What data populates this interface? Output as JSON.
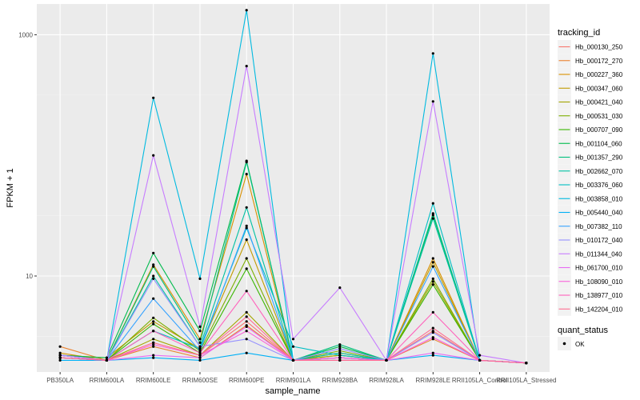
{
  "chart_data": {
    "type": "line",
    "title": "",
    "xlabel": "sample_name",
    "ylabel": "FPKM + 1",
    "yscale": "log10",
    "ylim": [
      1.6,
      1800
    ],
    "yticks": [
      10,
      1000
    ],
    "ytick_labels": [
      "10",
      "1000"
    ],
    "grid": true,
    "categories": [
      "PB350LA",
      "RRIM600LA",
      "RRIM600LE",
      "RRIM600SE",
      "RRIM600PE",
      "RRIM901LA",
      "RRIM928BA",
      "RRIM928LA",
      "RRIM928LE",
      "RRII105LA_Control",
      "RRII105LA_Stressed"
    ],
    "category_labels": [
      "PB350LA",
      "RRIM600LA",
      "RRIM600LE",
      "RRIM600SE",
      "RRIM600PE",
      "RRIM901LA",
      "RRIM928BA",
      "RRIM928LA",
      "RRIM928LE",
      "RRII105LA_Control",
      "RRII105LA_Stressed"
    ],
    "legend": {
      "title": "tracking_id",
      "position": "right",
      "entries": [
        "Hb_000130_250",
        "Hb_000172_270",
        "Hb_000227_360",
        "Hb_000347_060",
        "Hb_000421_040",
        "Hb_000531_030",
        "Hb_000707_090",
        "Hb_001104_060",
        "Hb_001357_290",
        "Hb_002662_070",
        "Hb_003376_060",
        "Hb_003858_010",
        "Hb_005440_040",
        "Hb_007382_110",
        "Hb_010172_040",
        "Hb_011344_040",
        "Hb_061700_010",
        "Hb_108090_010",
        "Hb_138977_010",
        "Hb_142204_010"
      ]
    },
    "shape_legend": {
      "title": "quant_status",
      "entries": [
        "OK"
      ]
    },
    "series": [
      {
        "name": "Hb_000130_250",
        "color": "#F8766D",
        "values": [
          2.1,
          2.0,
          2.8,
          2.2,
          4.2,
          2.0,
          2.0,
          2.0,
          3.5,
          2.0,
          1.9
        ]
      },
      {
        "name": "Hb_000172_270",
        "color": "#EA8331",
        "values": [
          2.6,
          2.0,
          2.6,
          2.1,
          3.9,
          2.0,
          2.1,
          2.0,
          3.0,
          2.0,
          1.9
        ]
      },
      {
        "name": "Hb_000227_360",
        "color": "#D89000",
        "values": [
          2.3,
          2.0,
          12.4,
          3.0,
          70.0,
          2.0,
          2.2,
          2.0,
          14.0,
          2.0,
          1.9
        ]
      },
      {
        "name": "Hb_000347_060",
        "color": "#C09B00",
        "values": [
          2.2,
          2.1,
          4.2,
          2.5,
          20.0,
          2.0,
          2.3,
          2.0,
          13.0,
          2.0,
          1.9
        ]
      },
      {
        "name": "Hb_000421_040",
        "color": "#A3A500",
        "values": [
          2.2,
          2.0,
          3.0,
          2.2,
          5.0,
          2.0,
          2.2,
          2.0,
          9.0,
          2.0,
          1.9
        ]
      },
      {
        "name": "Hb_000531_030",
        "color": "#7CAE00",
        "values": [
          2.1,
          2.0,
          4.5,
          2.4,
          14.0,
          2.0,
          2.4,
          2.0,
          9.5,
          2.0,
          1.9
        ]
      },
      {
        "name": "Hb_000707_090",
        "color": "#39B600",
        "values": [
          2.2,
          2.0,
          4.0,
          2.3,
          11.5,
          2.0,
          2.1,
          2.0,
          8.5,
          2.0,
          1.9
        ]
      },
      {
        "name": "Hb_001104_060",
        "color": "#00BB4E",
        "values": [
          2.2,
          2.1,
          15.5,
          3.5,
          90.0,
          2.0,
          2.6,
          2.0,
          32.0,
          2.0,
          1.9
        ]
      },
      {
        "name": "Hb_001357_290",
        "color": "#00BF7D",
        "values": [
          2.1,
          2.0,
          12.0,
          2.8,
          88.0,
          2.0,
          2.7,
          2.0,
          33.0,
          2.0,
          1.9
        ]
      },
      {
        "name": "Hb_002662_070",
        "color": "#00C1A3",
        "values": [
          2.2,
          2.0,
          10.0,
          2.6,
          37.0,
          2.0,
          2.3,
          2.0,
          30.0,
          2.0,
          1.9
        ]
      },
      {
        "name": "Hb_003376_060",
        "color": "#00BFC4",
        "values": [
          2.1,
          2.0,
          3.5,
          2.5,
          25.0,
          2.6,
          2.2,
          2.0,
          40.0,
          2.0,
          1.9
        ]
      },
      {
        "name": "Hb_003858_010",
        "color": "#00BAE0",
        "values": [
          2.1,
          2.0,
          300.0,
          9.5,
          1600.0,
          2.0,
          2.1,
          2.0,
          700.0,
          2.0,
          1.9
        ]
      },
      {
        "name": "Hb_005440_040",
        "color": "#00B0F6",
        "values": [
          2.0,
          2.0,
          2.1,
          2.0,
          2.3,
          2.0,
          2.0,
          2.0,
          2.2,
          2.0,
          1.9
        ]
      },
      {
        "name": "Hb_007382_110",
        "color": "#35A2FF",
        "values": [
          2.2,
          2.0,
          6.5,
          2.4,
          26.0,
          2.0,
          2.1,
          2.0,
          12.0,
          2.0,
          1.9
        ]
      },
      {
        "name": "Hb_010172_040",
        "color": "#9590FF",
        "values": [
          2.2,
          2.0,
          9.5,
          2.6,
          3.0,
          2.0,
          2.5,
          2.0,
          3.4,
          2.0,
          1.9
        ]
      },
      {
        "name": "Hb_011344_040",
        "color": "#C77CFF",
        "values": [
          2.2,
          2.0,
          100.0,
          3.8,
          550.0,
          3.0,
          8.0,
          2.0,
          280.0,
          2.2,
          1.9
        ]
      },
      {
        "name": "Hb_061700_010",
        "color": "#E76BF3",
        "values": [
          2.1,
          2.0,
          2.2,
          2.1,
          3.8,
          2.0,
          2.1,
          2.0,
          2.3,
          2.0,
          1.9
        ]
      },
      {
        "name": "Hb_108090_010",
        "color": "#FA62DB",
        "values": [
          2.1,
          2.0,
          2.7,
          2.2,
          3.5,
          2.0,
          2.1,
          2.0,
          3.1,
          2.0,
          1.9
        ]
      },
      {
        "name": "Hb_138977_010",
        "color": "#FF62BC",
        "values": [
          2.1,
          2.0,
          3.5,
          2.3,
          7.5,
          2.0,
          2.0,
          2.0,
          5.0,
          2.0,
          1.9
        ]
      },
      {
        "name": "Hb_142204_010",
        "color": "#FF6C91",
        "values": [
          2.1,
          2.0,
          2.8,
          2.2,
          4.6,
          2.0,
          2.0,
          2.0,
          3.7,
          2.0,
          1.9
        ]
      }
    ]
  }
}
